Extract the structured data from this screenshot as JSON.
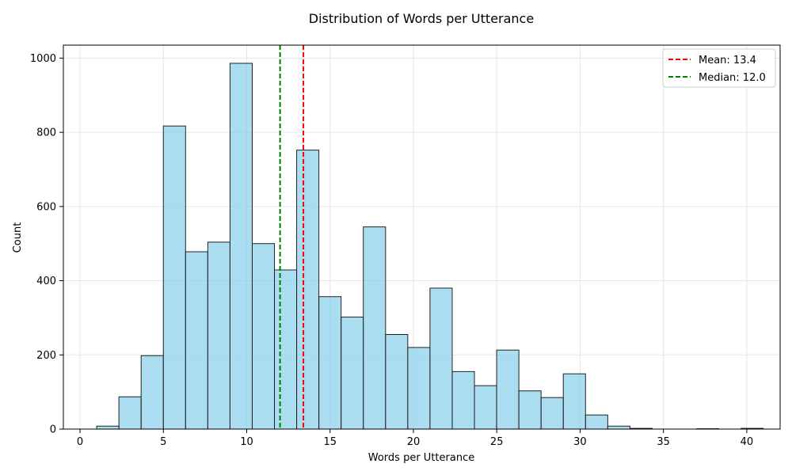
{
  "chart_data": {
    "type": "bar",
    "title": "Distribution of Words per Utterance",
    "xlabel": "Words per Utterance",
    "ylabel": "Count",
    "xlim": [
      -1,
      42
    ],
    "ylim": [
      0,
      1035
    ],
    "xticks": [
      0,
      5,
      10,
      15,
      20,
      25,
      30,
      35,
      40
    ],
    "yticks": [
      0,
      200,
      400,
      600,
      800,
      1000
    ],
    "grid": true,
    "bin_start": 1,
    "bin_width": 1.333,
    "values": [
      8,
      87,
      198,
      817,
      478,
      504,
      986,
      500,
      429,
      752,
      357,
      302,
      545,
      255,
      220,
      380,
      155,
      117,
      213,
      103,
      85,
      149,
      38,
      8,
      2,
      0,
      0,
      1,
      0,
      2
    ],
    "bar_color": "#87ceeb",
    "bar_edge_color": "#222222",
    "lines": [
      {
        "label": "Mean: 13.4",
        "x": 13.4,
        "color": "#ff0000"
      },
      {
        "label": "Median: 12.0",
        "x": 12.0,
        "color": "#008000"
      }
    ],
    "legend": "top-right"
  }
}
